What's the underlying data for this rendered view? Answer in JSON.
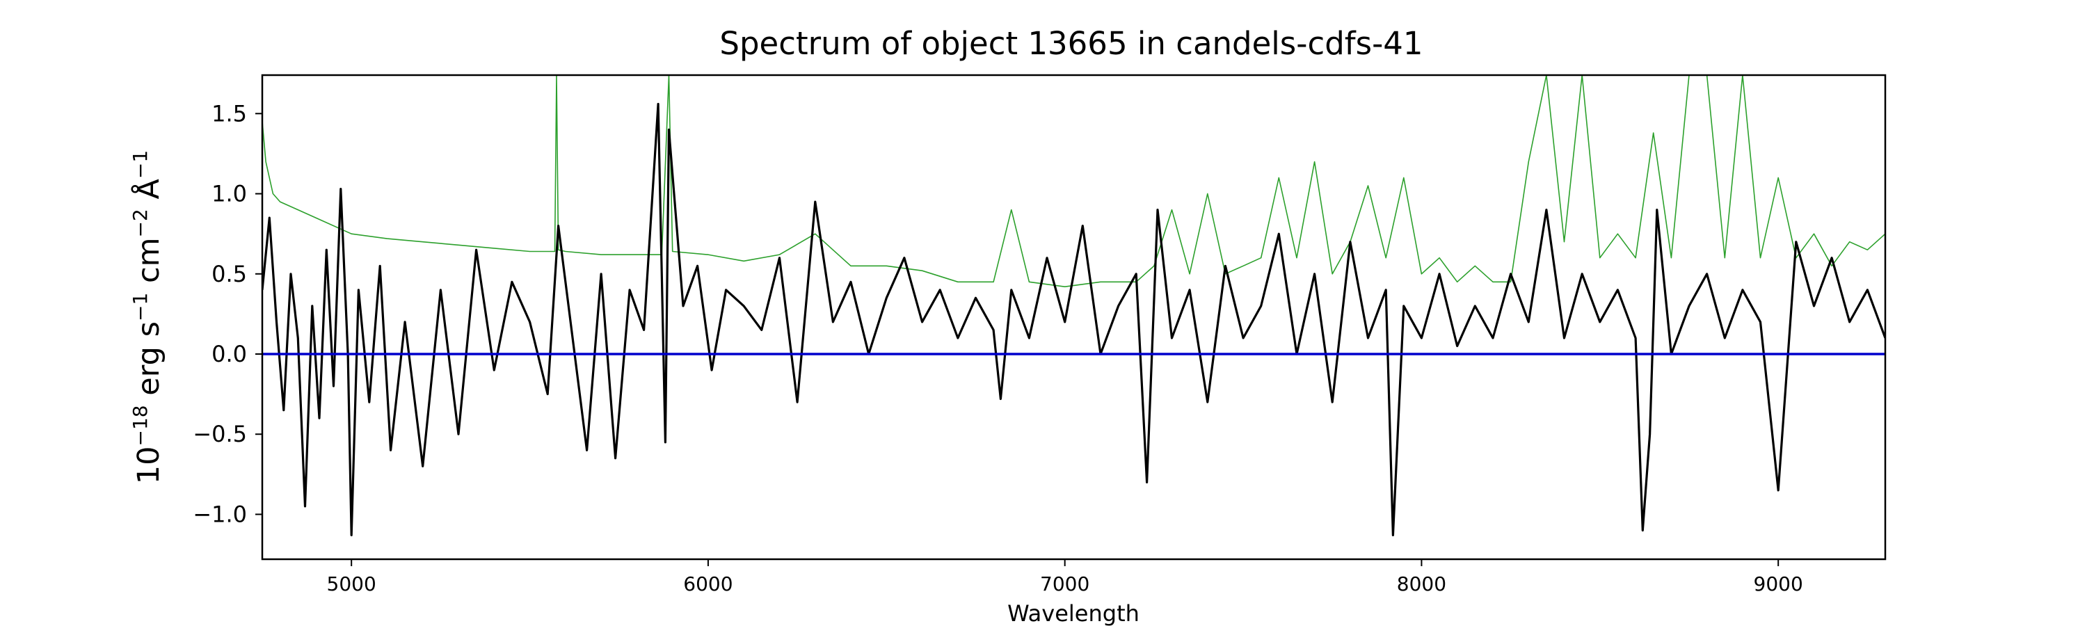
{
  "chart_data": {
    "type": "line",
    "title": "Spectrum of object 13665 in candels-cdfs-41",
    "xlabel": "Wavelength",
    "ylabel_parts": {
      "prefix": "10",
      "exponent": "−18",
      "unit_erg": " erg s",
      "exp_s": "−1",
      "unit_cm": " cm",
      "exp_cm": "−2",
      "unit_ang": " Å",
      "exp_ang": "−1"
    },
    "xlim": [
      4750,
      9300
    ],
    "ylim": [
      -1.28,
      1.74
    ],
    "x_ticks": [
      5000,
      6000,
      7000,
      8000,
      9000
    ],
    "y_ticks": [
      -1.0,
      -0.5,
      0.0,
      0.5,
      1.0,
      1.5
    ],
    "x_tick_labels": [
      "5000",
      "6000",
      "7000",
      "8000",
      "9000"
    ],
    "y_tick_labels": [
      "−1.0",
      "−0.5",
      "0.0",
      "0.5",
      "1.0",
      "1.5"
    ],
    "grid": false,
    "legend": "none",
    "series": [
      {
        "role": "flux",
        "color": "#000000",
        "x": [
          4750,
          4770,
          4790,
          4810,
          4830,
          4850,
          4870,
          4890,
          4910,
          4930,
          4950,
          4970,
          4990,
          5000,
          5020,
          5050,
          5080,
          5110,
          5150,
          5200,
          5250,
          5300,
          5350,
          5400,
          5450,
          5500,
          5550,
          5580,
          5620,
          5660,
          5700,
          5740,
          5780,
          5820,
          5860,
          5880,
          5890,
          5930,
          5970,
          6010,
          6050,
          6100,
          6150,
          6200,
          6250,
          6300,
          6350,
          6400,
          6450,
          6500,
          6550,
          6600,
          6650,
          6700,
          6750,
          6800,
          6820,
          6850,
          6900,
          6950,
          7000,
          7050,
          7100,
          7150,
          7200,
          7230,
          7260,
          7300,
          7350,
          7400,
          7450,
          7500,
          7550,
          7600,
          7650,
          7700,
          7750,
          7800,
          7850,
          7900,
          7920,
          7950,
          8000,
          8050,
          8100,
          8150,
          8200,
          8250,
          8300,
          8350,
          8400,
          8450,
          8500,
          8550,
          8600,
          8620,
          8640,
          8660,
          8700,
          8750,
          8800,
          8850,
          8900,
          8950,
          9000,
          9050,
          9100,
          9150,
          9200,
          9250,
          9300
        ],
        "y": [
          0.4,
          0.85,
          0.2,
          -0.35,
          0.5,
          0.1,
          -0.95,
          0.3,
          -0.4,
          0.65,
          -0.2,
          1.03,
          0.0,
          -1.13,
          0.4,
          -0.3,
          0.55,
          -0.6,
          0.2,
          -0.7,
          0.4,
          -0.5,
          0.65,
          -0.1,
          0.45,
          0.2,
          -0.25,
          0.8,
          0.1,
          -0.6,
          0.5,
          -0.65,
          0.4,
          0.15,
          1.56,
          -0.55,
          1.4,
          0.3,
          0.55,
          -0.1,
          0.4,
          0.3,
          0.15,
          0.6,
          -0.3,
          0.95,
          0.2,
          0.45,
          0.0,
          0.35,
          0.6,
          0.2,
          0.4,
          0.1,
          0.35,
          0.15,
          -0.28,
          0.4,
          0.1,
          0.6,
          0.2,
          0.8,
          0.0,
          0.3,
          0.5,
          -0.8,
          0.9,
          0.1,
          0.4,
          -0.3,
          0.55,
          0.1,
          0.3,
          0.75,
          0.0,
          0.5,
          -0.3,
          0.7,
          0.1,
          0.4,
          -1.13,
          0.3,
          0.1,
          0.5,
          0.05,
          0.3,
          0.1,
          0.5,
          0.2,
          0.9,
          0.1,
          0.5,
          0.2,
          0.4,
          0.1,
          -1.1,
          -0.5,
          0.9,
          0.0,
          0.3,
          0.5,
          0.1,
          0.4,
          0.2,
          -0.85,
          0.7,
          0.3,
          0.6,
          0.2,
          0.4,
          0.1
        ]
      },
      {
        "role": "error",
        "color": "#2ca02c",
        "x": [
          4750,
          4760,
          4780,
          4800,
          4850,
          4900,
          5000,
          5100,
          5200,
          5300,
          5400,
          5500,
          5570,
          5575,
          5580,
          5600,
          5700,
          5800,
          5870,
          5890,
          5900,
          6000,
          6100,
          6200,
          6300,
          6400,
          6500,
          6600,
          6700,
          6800,
          6850,
          6900,
          7000,
          7100,
          7200,
          7250,
          7300,
          7350,
          7400,
          7450,
          7500,
          7550,
          7600,
          7650,
          7700,
          7750,
          7800,
          7850,
          7900,
          7950,
          8000,
          8050,
          8100,
          8150,
          8200,
          8250,
          8300,
          8350,
          8400,
          8450,
          8500,
          8550,
          8600,
          8650,
          8700,
          8750,
          8800,
          8850,
          8900,
          8950,
          9000,
          9050,
          9100,
          9150,
          9200,
          9250,
          9300
        ],
        "y": [
          1.45,
          1.2,
          1.0,
          0.95,
          0.9,
          0.85,
          0.75,
          0.72,
          0.7,
          0.68,
          0.66,
          0.64,
          0.64,
          1.74,
          0.65,
          0.64,
          0.62,
          0.62,
          0.62,
          1.74,
          0.64,
          0.62,
          0.58,
          0.62,
          0.75,
          0.55,
          0.55,
          0.52,
          0.45,
          0.45,
          0.9,
          0.45,
          0.42,
          0.45,
          0.45,
          0.55,
          0.9,
          0.5,
          1.0,
          0.5,
          0.55,
          0.6,
          1.1,
          0.6,
          1.2,
          0.5,
          0.7,
          1.05,
          0.6,
          1.1,
          0.5,
          0.6,
          0.45,
          0.55,
          0.45,
          0.45,
          1.2,
          1.74,
          0.7,
          1.74,
          0.6,
          0.75,
          0.6,
          1.38,
          0.6,
          1.74,
          1.74,
          0.6,
          1.74,
          0.6,
          1.1,
          0.6,
          0.75,
          0.55,
          0.7,
          0.65,
          0.75
        ]
      },
      {
        "role": "zero",
        "color": "#0000cc",
        "x": [
          4750,
          9300
        ],
        "y": [
          0.0,
          0.0
        ]
      }
    ]
  }
}
